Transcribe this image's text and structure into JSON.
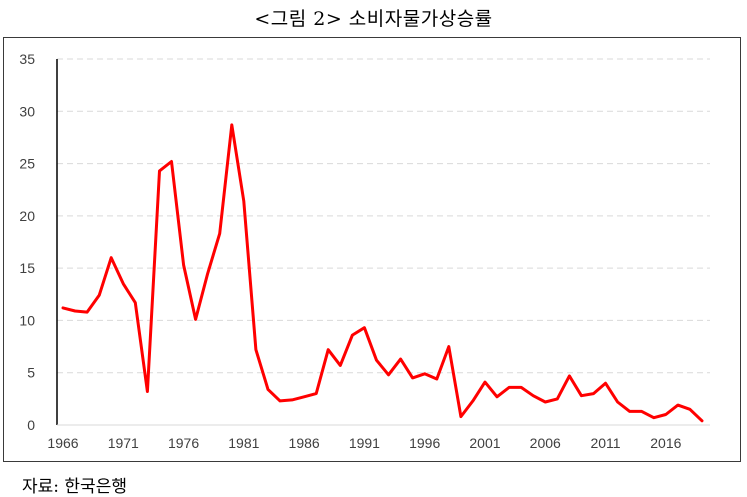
{
  "title": "<그림 2> 소비자물가상승률",
  "source": "자료: 한국은행",
  "chart_data": {
    "type": "line",
    "title": "<그림 2> 소비자물가상승률",
    "xlabel": "",
    "ylabel": "",
    "ylim": [
      0,
      35
    ],
    "xlim": [
      1966,
      2019
    ],
    "yticks": [
      0,
      5,
      10,
      15,
      20,
      25,
      30,
      35
    ],
    "xticks": [
      1966,
      1971,
      1976,
      1981,
      1986,
      1991,
      1996,
      2001,
      2006,
      2011,
      2016
    ],
    "grid": "horizontal dashed",
    "line_color": "#ff0000",
    "series": [
      {
        "x": [
          1966,
          1967,
          1968,
          1969,
          1970,
          1971,
          1972,
          1973,
          1974,
          1975,
          1976,
          1977,
          1978,
          1979,
          1980,
          1981,
          1982,
          1983,
          1984,
          1985,
          1986,
          1987,
          1988,
          1989,
          1990,
          1991,
          1992,
          1993,
          1994,
          1995,
          1996,
          1997,
          1998,
          1999,
          2000,
          2001,
          2002,
          2003,
          2004,
          2005,
          2006,
          2007,
          2008,
          2009,
          2010,
          2011,
          2012,
          2013,
          2014,
          2015,
          2016,
          2017,
          2018,
          2019
        ],
        "values": [
          11.2,
          10.9,
          10.8,
          12.4,
          16.0,
          13.5,
          11.7,
          3.2,
          24.3,
          25.2,
          15.3,
          10.1,
          14.5,
          18.3,
          28.7,
          21.4,
          7.2,
          3.4,
          2.3,
          2.4,
          2.7,
          3.0,
          7.2,
          5.7,
          8.6,
          9.3,
          6.2,
          4.8,
          6.3,
          4.5,
          4.9,
          4.4,
          7.5,
          0.8,
          2.3,
          4.1,
          2.7,
          3.6,
          3.6,
          2.8,
          2.2,
          2.5,
          4.7,
          2.8,
          3.0,
          4.0,
          2.2,
          1.3,
          1.3,
          0.7,
          1.0,
          1.9,
          1.5,
          0.4
        ]
      }
    ]
  }
}
